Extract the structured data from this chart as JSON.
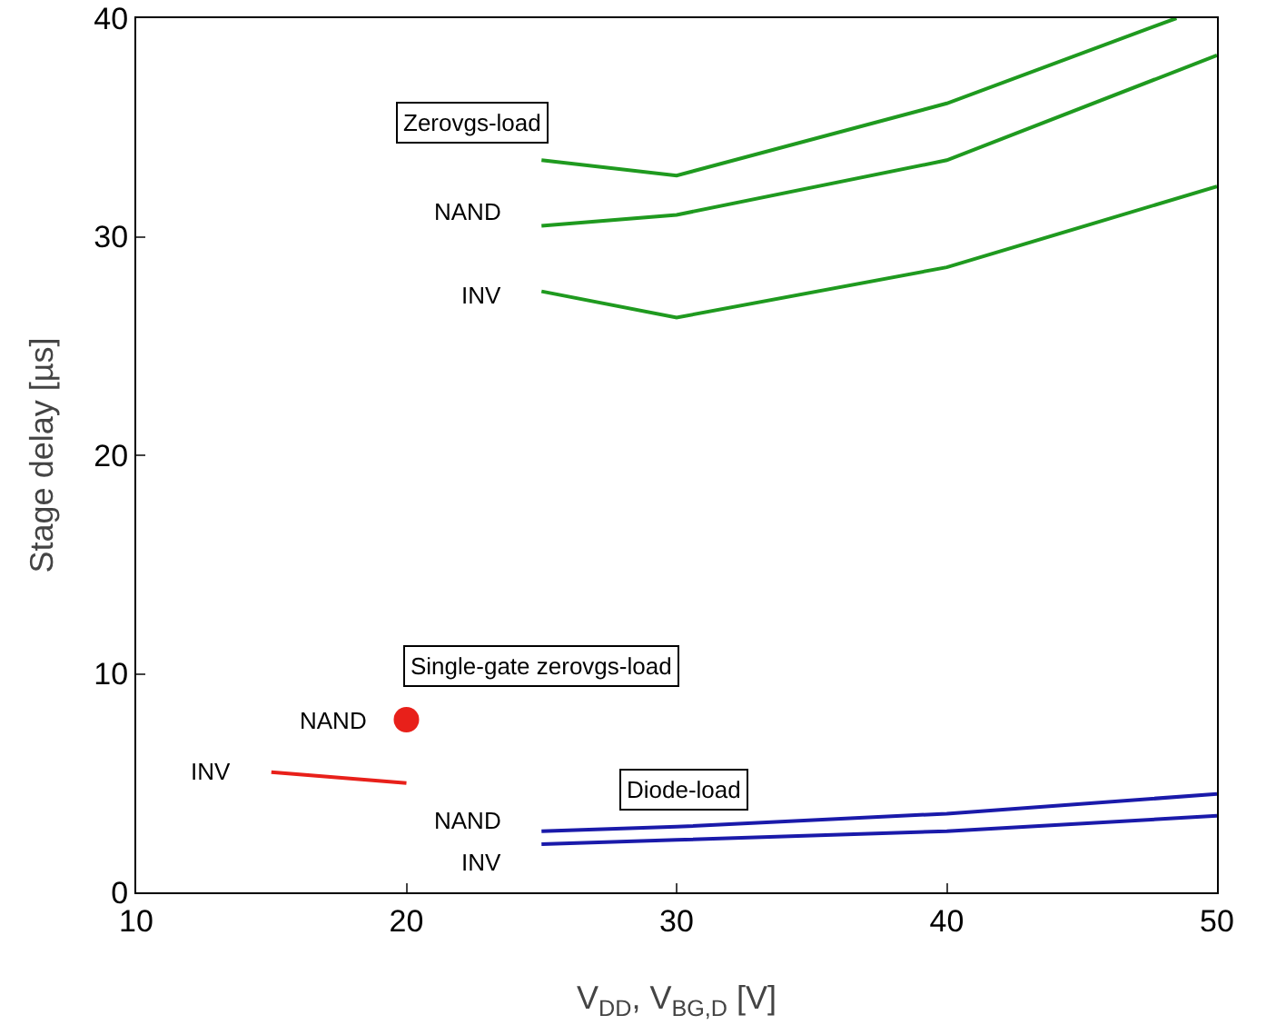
{
  "chart_data": {
    "type": "line",
    "xlabel": "V$_{DD}$, V$_{BG,D}$ [V]",
    "ylabel": "Stage delay [µs]",
    "xlim": [
      10,
      50
    ],
    "xticks": [
      10,
      20,
      30,
      40,
      50
    ],
    "ylim": [
      0,
      40
    ],
    "yticks": [
      0,
      10,
      20,
      30,
      40
    ],
    "grid": false,
    "legend": false,
    "marker": "none",
    "line_style": "solid",
    "series": [
      {
        "color": "#1f9a1f",
        "x": [
          25,
          30,
          40,
          48.5
        ],
        "values": [
          33.5,
          32.8,
          36.1,
          40
        ]
      },
      {
        "name": "NAND",
        "color": "#1f9a1f",
        "x": [
          25,
          30,
          40,
          50
        ],
        "values": [
          30.5,
          31.0,
          33.5,
          38.3
        ]
      },
      {
        "name": "INV",
        "color": "#1f9a1f",
        "x": [
          25,
          30,
          40,
          50
        ],
        "values": [
          27.5,
          26.3,
          28.6,
          32.3
        ]
      },
      {
        "name": "NAND",
        "color": "#1a1aaa",
        "x": [
          25,
          30,
          40,
          50
        ],
        "values": [
          2.8,
          3.0,
          3.6,
          4.5
        ]
      },
      {
        "name": "INV",
        "color": "#1a1aaa",
        "x": [
          25,
          30,
          40,
          50
        ],
        "values": [
          2.2,
          2.4,
          2.8,
          3.5
        ]
      },
      {
        "name": "INV",
        "color": "#e8201a",
        "x": [
          15,
          20
        ],
        "values": [
          5.5,
          5.0
        ]
      },
      {
        "name": "NAND",
        "color": "#e8201a",
        "type": "scatter",
        "marker": "circle",
        "x": [
          20
        ],
        "values": [
          7.9
        ]
      }
    ],
    "annotations": [
      "Zerovgs-load",
      "Single-gate zerovgs-load",
      "Diode-load"
    ]
  }
}
